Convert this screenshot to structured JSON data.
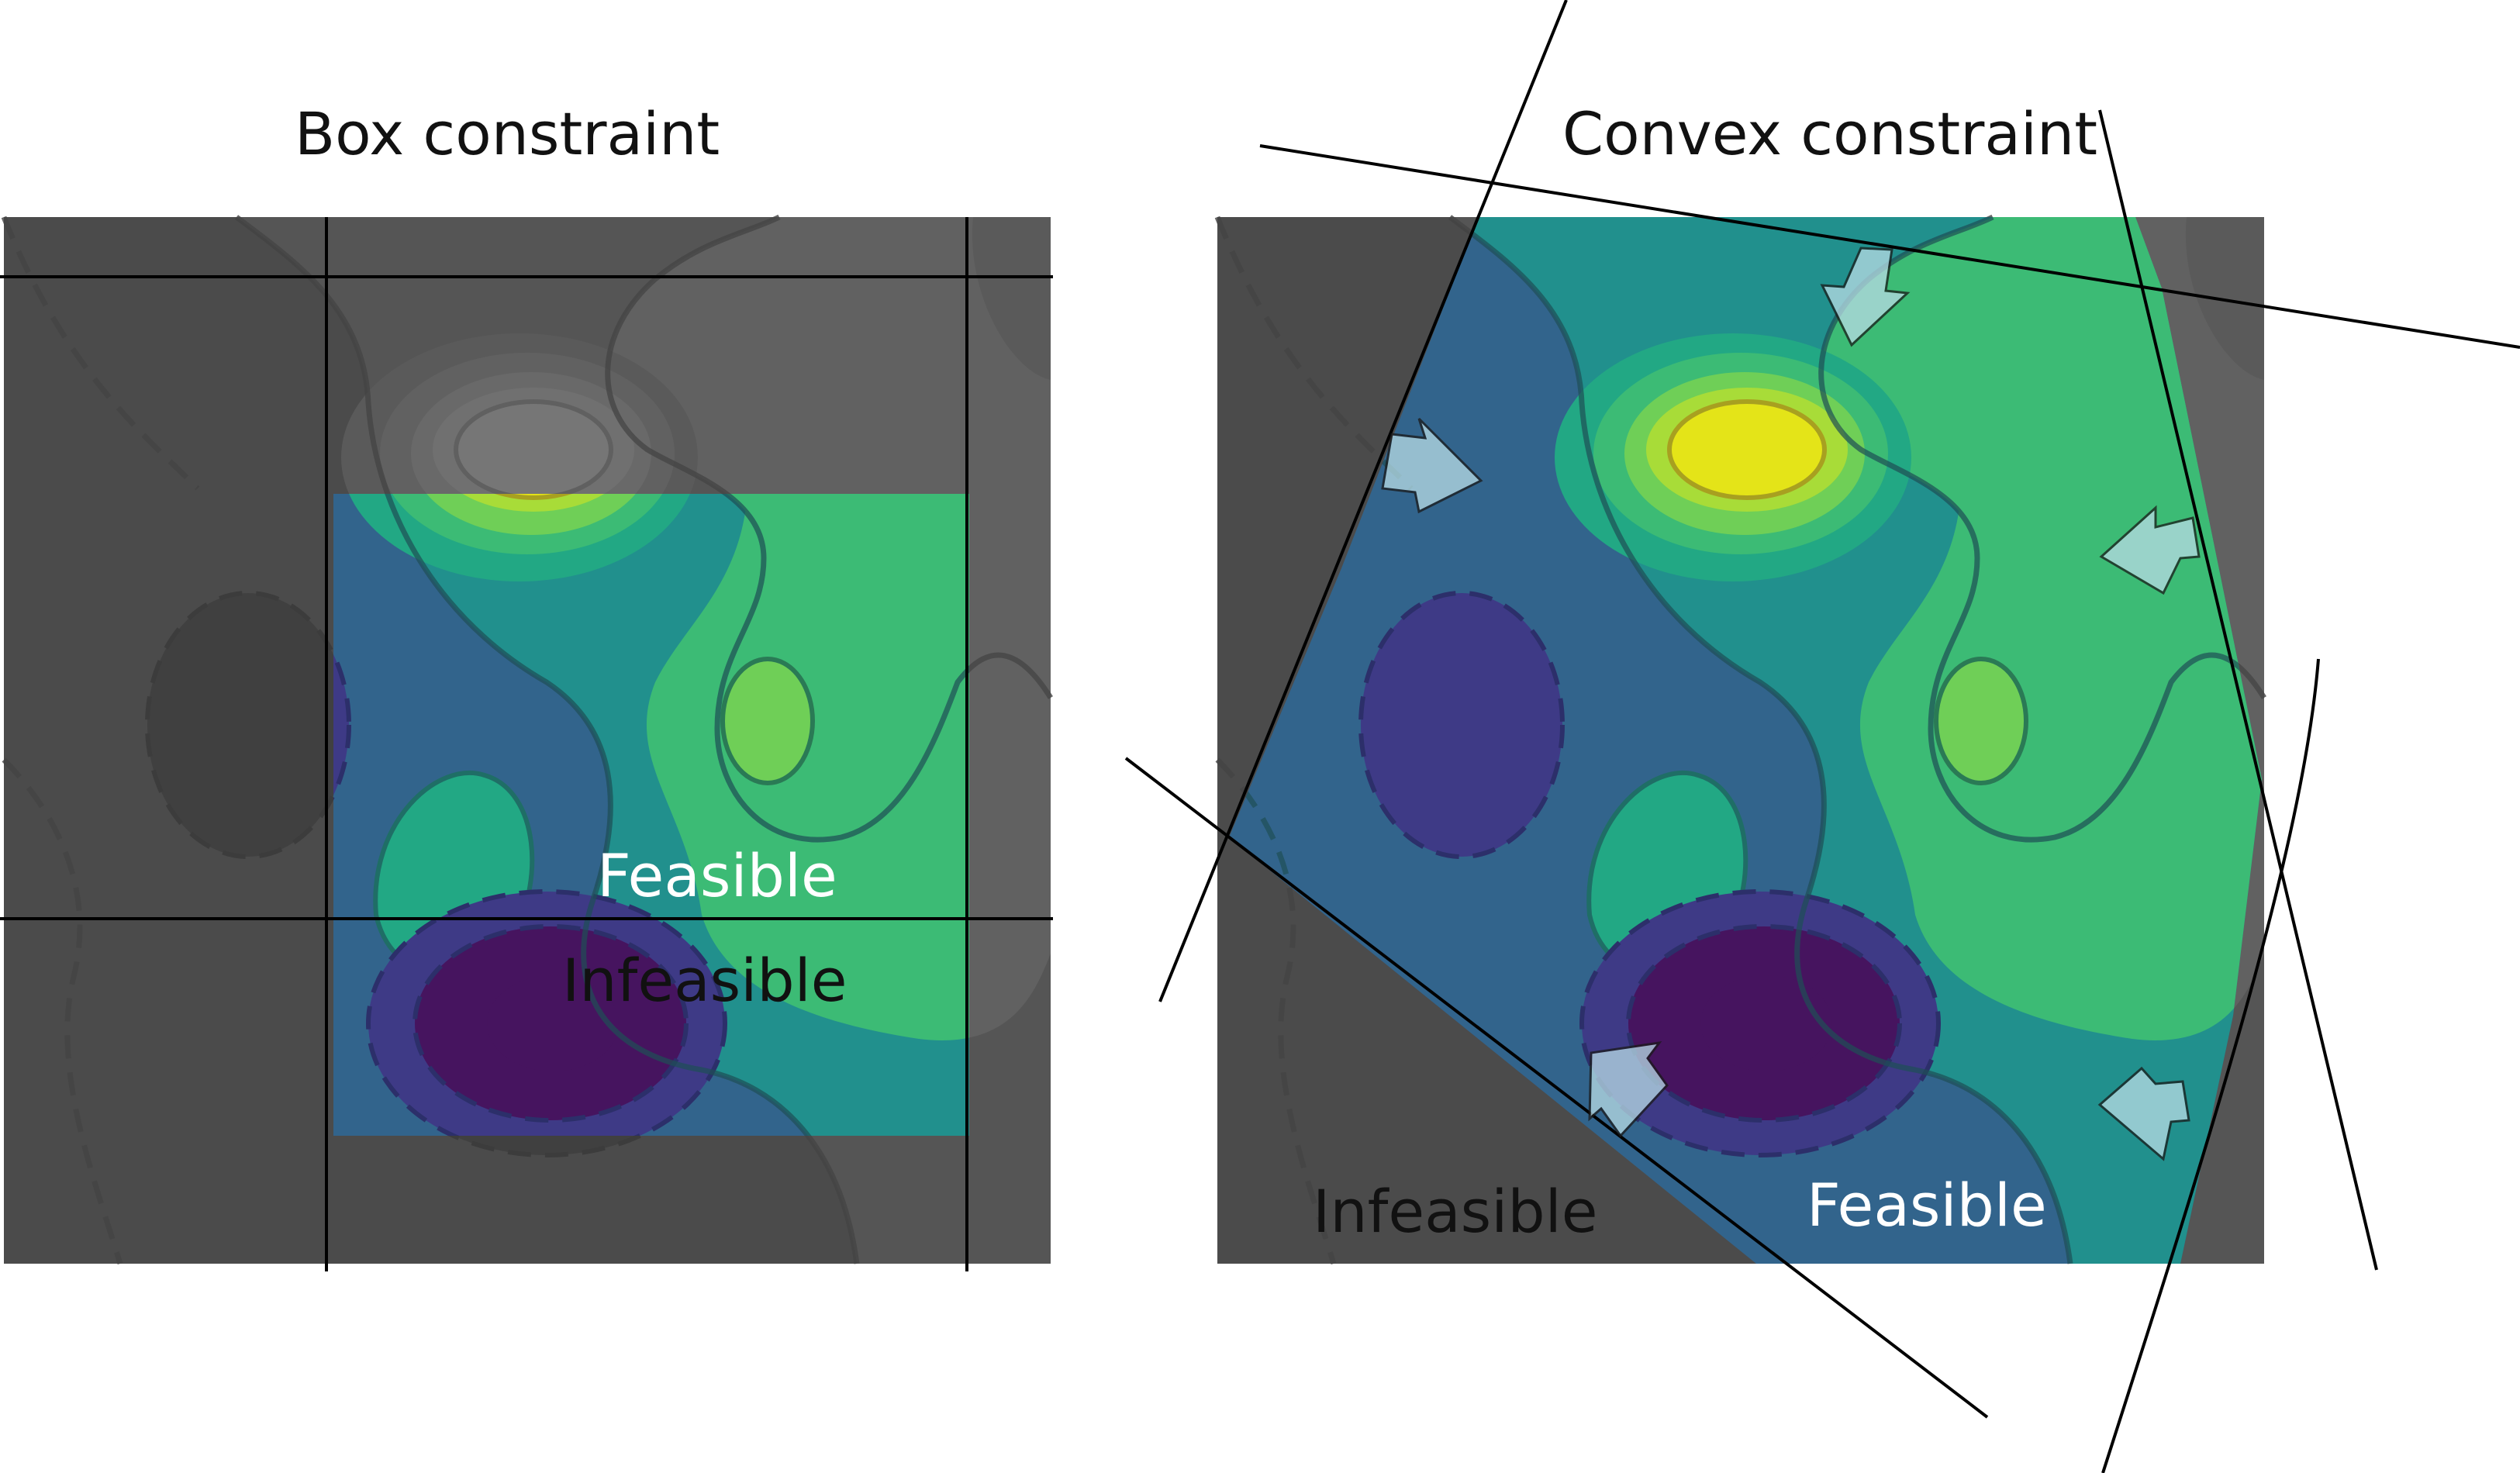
{
  "titles": {
    "left": "Box constraint",
    "right": "Convex constraint"
  },
  "labels": {
    "left_feasible": "Feasible",
    "left_infeasible": "Infeasible",
    "right_feasible": "Feasible",
    "right_infeasible": "Infeasible"
  },
  "colors": {
    "infeasible_gray": "#5e5e5e",
    "level_1": "#46145f",
    "level_2": "#3e3a86",
    "level_3": "#32648c",
    "level_4": "#21908d",
    "level_5": "#22a884",
    "level_6": "#3cbb75",
    "level_7": "#6fcf57",
    "level_8": "#a8dc38",
    "level_9": "#e4e418",
    "arrow_fill": "#b8dce6",
    "constraint_line": "#000000"
  },
  "icons": [
    "arrow-icon",
    "arrow-icon",
    "arrow-icon",
    "arrow-icon",
    "arrow-icon",
    "arrow-icon"
  ]
}
